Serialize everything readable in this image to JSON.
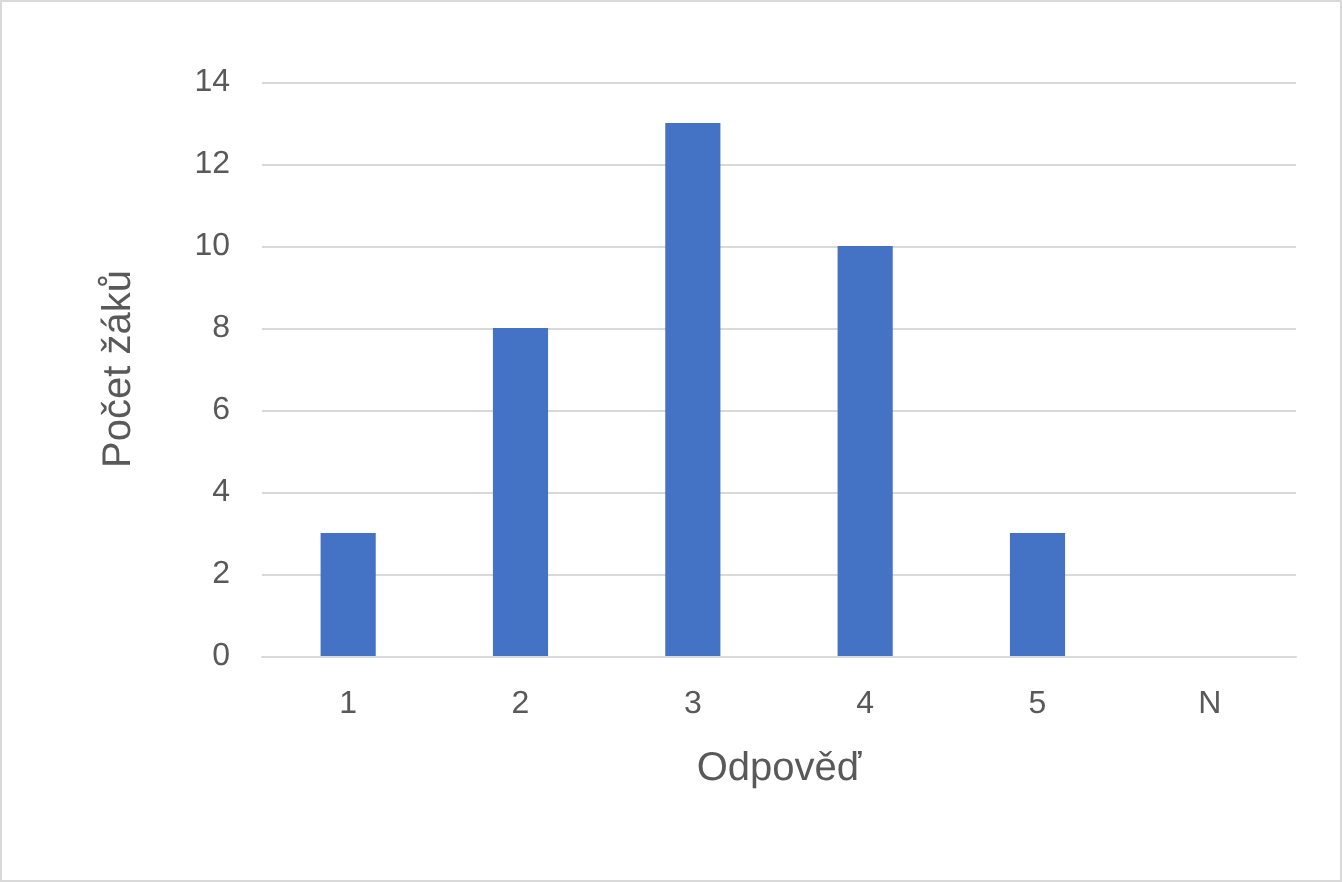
{
  "chart_data": {
    "type": "bar",
    "xlabel": "Odpověď",
    "ylabel": "Počet žáků",
    "categories": [
      "1",
      "2",
      "3",
      "4",
      "5",
      "N"
    ],
    "values": [
      3,
      8,
      13,
      10,
      3,
      0
    ],
    "color": "#4472c4",
    "ylim": [
      0,
      14
    ],
    "yticks": [
      0,
      2,
      4,
      6,
      8,
      10,
      12,
      14
    ],
    "grid": "y"
  }
}
